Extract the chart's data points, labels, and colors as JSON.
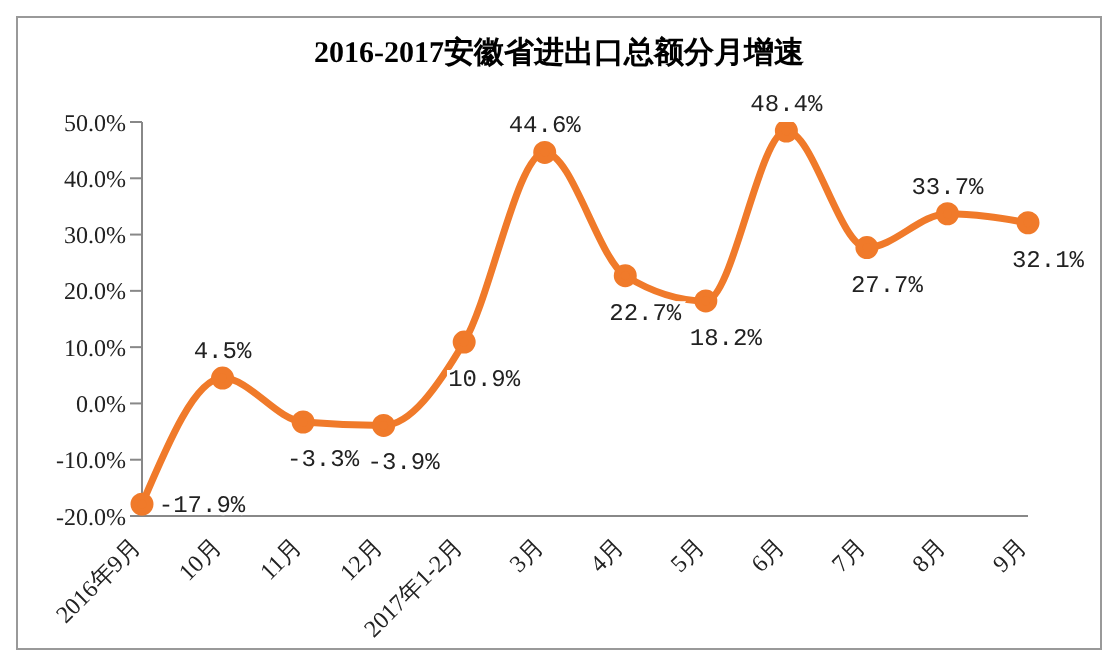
{
  "chart_data": {
    "type": "line",
    "title": "2016-2017安徽省进出口总额分月增速",
    "categories": [
      "2016年9月",
      "10月",
      "11月",
      "12月",
      "2017年1-2月",
      "3月",
      "4月",
      "5月",
      "6月",
      "7月",
      "8月",
      "9月"
    ],
    "series": [
      {
        "color": "#f07a2a",
        "values": [
          -17.9,
          4.5,
          -3.3,
          -3.9,
          10.9,
          44.6,
          22.7,
          18.2,
          48.4,
          27.7,
          33.7,
          32.1
        ],
        "value_labels": [
          "-17.9%",
          "4.5%",
          "-3.3%",
          "-3.9%",
          "10.9%",
          "44.6%",
          "22.7%",
          "18.2%",
          "48.4%",
          "27.7%",
          "33.7%",
          "32.1%"
        ]
      }
    ],
    "ylim": [
      -20,
      50
    ],
    "yticks": [
      {
        "value": -20,
        "label": "-20.0%"
      },
      {
        "value": -10,
        "label": "-10.0%"
      },
      {
        "value": 0,
        "label": "0.0%"
      },
      {
        "value": 10,
        "label": "10.0%"
      },
      {
        "value": 20,
        "label": "20.0%"
      },
      {
        "value": 30,
        "label": "30.0%"
      },
      {
        "value": 40,
        "label": "40.0%"
      },
      {
        "value": 50,
        "label": "50.0%"
      }
    ],
    "marker": "circle",
    "grid": false,
    "legend": false
  }
}
